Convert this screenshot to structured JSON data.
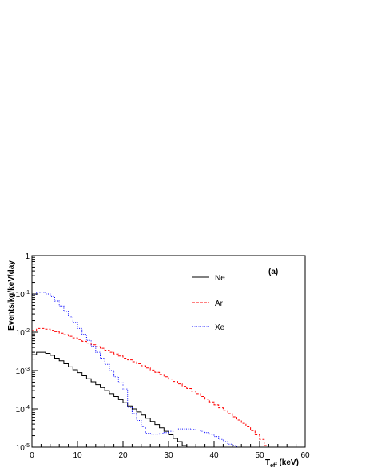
{
  "chart_data": {
    "type": "line",
    "title": "",
    "annotation": "(a)",
    "xlabel": {
      "main": "T",
      "sub": "eff",
      "suffix": " (keV)"
    },
    "ylabel": "Events/kg/keV/day",
    "xlim": [
      0,
      60
    ],
    "ylim": [
      1e-05,
      1
    ],
    "yscale": "log",
    "grid": false,
    "legend_position": "top-center",
    "x_ticks": [
      0,
      10,
      20,
      30,
      40,
      50,
      60
    ],
    "x_tick_labels": [
      "0",
      "10",
      "20",
      "30",
      "40",
      "50",
      "60"
    ],
    "y_ticks": [
      {
        "value": 1,
        "base": "1",
        "exp": ""
      },
      {
        "value": 0.1,
        "base": "10",
        "exp": "-1"
      },
      {
        "value": 0.01,
        "base": "10",
        "exp": "-2"
      },
      {
        "value": 0.001,
        "base": "10",
        "exp": "-3"
      },
      {
        "value": 0.0001,
        "base": "10",
        "exp": "-4"
      },
      {
        "value": 1e-05,
        "base": "10",
        "exp": "-5"
      }
    ],
    "series": [
      {
        "name": "Ne",
        "color": "#000000",
        "style": "solid",
        "x": [
          0,
          1,
          2,
          3,
          4,
          5,
          6,
          7,
          8,
          9,
          10,
          11,
          12,
          13,
          14,
          15,
          16,
          17,
          18,
          19,
          20,
          21,
          22,
          23,
          24,
          25,
          26,
          27,
          28,
          29,
          30,
          31,
          32,
          33,
          34
        ],
        "y": [
          0.0026,
          0.003,
          0.003,
          0.0028,
          0.0025,
          0.0021,
          0.0018,
          0.0015,
          0.00125,
          0.00105,
          0.00088,
          0.00073,
          0.00061,
          0.00051,
          0.00043,
          0.00036,
          0.0003,
          0.00025,
          0.00021,
          0.000175,
          0.000145,
          0.00012,
          0.0001,
          8.3e-05,
          6.9e-05,
          5.7e-05,
          4.7e-05,
          3.9e-05,
          3.2e-05,
          2.6e-05,
          2.1e-05,
          1.7e-05,
          1.4e-05,
          1.1e-05,
          1e-05
        ]
      },
      {
        "name": "Ar",
        "color": "#ff0000",
        "style": "dashed",
        "x": [
          0,
          1,
          2,
          3,
          4,
          5,
          6,
          7,
          8,
          9,
          10,
          11,
          12,
          13,
          14,
          15,
          16,
          17,
          18,
          19,
          20,
          21,
          22,
          23,
          24,
          25,
          26,
          27,
          28,
          29,
          30,
          31,
          32,
          33,
          34,
          35,
          36,
          37,
          38,
          39,
          40,
          41,
          42,
          43,
          44,
          45,
          46,
          47,
          48,
          49,
          50,
          51
        ],
        "y": [
          0.011,
          0.0125,
          0.0125,
          0.012,
          0.0112,
          0.0103,
          0.0094,
          0.0086,
          0.0078,
          0.0071,
          0.0064,
          0.0058,
          0.0052,
          0.0047,
          0.0042,
          0.0038,
          0.0034,
          0.003,
          0.0027,
          0.0024,
          0.0021,
          0.0019,
          0.0017,
          0.0015,
          0.00133,
          0.00117,
          0.00103,
          0.0009,
          0.00079,
          0.00069,
          0.0006,
          0.00052,
          0.00045,
          0.00039,
          0.00034,
          0.00029,
          0.00025,
          0.00021,
          0.00018,
          0.000152,
          0.000128,
          0.000107,
          9e-05,
          7.5e-05,
          6.2e-05,
          5.1e-05,
          4.2e-05,
          3.4e-05,
          2.7e-05,
          2.1e-05,
          1.6e-05,
          1.1e-05
        ]
      },
      {
        "name": "Xe",
        "color": "#0000ff",
        "style": "dotted",
        "x": [
          0,
          1,
          2,
          3,
          4,
          5,
          6,
          7,
          8,
          9,
          10,
          11,
          12,
          13,
          14,
          15,
          16,
          17,
          18,
          19,
          20,
          21,
          22,
          23,
          24,
          25,
          26,
          27,
          28,
          29,
          30,
          31,
          32,
          33,
          34,
          35,
          36,
          37,
          38,
          39,
          40,
          41,
          42,
          43,
          44,
          45
        ],
        "y": [
          0.095,
          0.11,
          0.11,
          0.1,
          0.085,
          0.065,
          0.048,
          0.035,
          0.025,
          0.018,
          0.0125,
          0.0088,
          0.0061,
          0.0043,
          0.003,
          0.0021,
          0.00145,
          0.001,
          0.00069,
          0.00048,
          0.00033,
          0.00011,
          7.5e-05,
          5e-05,
          3.4e-05,
          2.3e-05,
          2.2e-05,
          2.2e-05,
          2.3e-05,
          2.4e-05,
          2.6e-05,
          2.8e-05,
          3e-05,
          3e-05,
          3e-05,
          2.9e-05,
          2.8e-05,
          2.6e-05,
          2.4e-05,
          2.2e-05,
          1.9e-05,
          1.6e-05,
          1.4e-05,
          1.2e-05,
          1.1e-05,
          1e-05
        ]
      }
    ]
  }
}
